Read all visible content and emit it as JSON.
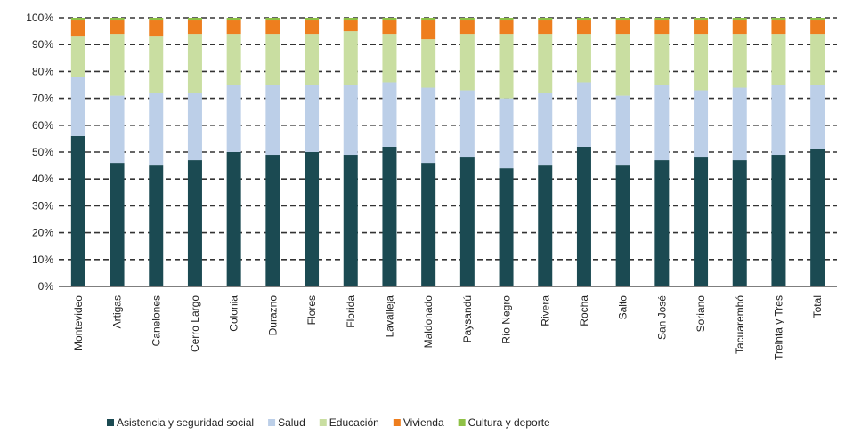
{
  "chart_data": {
    "type": "bar",
    "stacked": "percent",
    "title": "",
    "xlabel": "",
    "ylabel": "",
    "ylim": [
      0,
      100
    ],
    "yticks": [
      "0%",
      "10%",
      "20%",
      "30%",
      "40%",
      "50%",
      "60%",
      "70%",
      "80%",
      "90%",
      "100%"
    ],
    "grid": "horizontal dashed",
    "legend_position": "bottom",
    "categories": [
      "Montevideo",
      "Artigas",
      "Canelones",
      "Cerro Largo",
      "Colonia",
      "Durazno",
      "Flores",
      "Florida",
      "Lavalleja",
      "Maldonado",
      "Paysandú",
      "Río Negro",
      "Rivera",
      "Rocha",
      "Salto",
      "San José",
      "Soriano",
      "Tacuarembó",
      "Treinta y Tres",
      "Total"
    ],
    "series": [
      {
        "name": "Asistencia y seguridad social",
        "color": "#1b4a52",
        "values": [
          56,
          46,
          45,
          47,
          50,
          49,
          50,
          49,
          52,
          46,
          48,
          44,
          45,
          52,
          45,
          47,
          48,
          47,
          49,
          51
        ]
      },
      {
        "name": "Salud",
        "color": "#bccfe8",
        "values": [
          22,
          25,
          27,
          25,
          25,
          26,
          25,
          26,
          24,
          28,
          25,
          26,
          27,
          24,
          26,
          28,
          25,
          27,
          26,
          24
        ]
      },
      {
        "name": "Educación",
        "color": "#c9dea1",
        "values": [
          15,
          23,
          21,
          22,
          19,
          19,
          19,
          20,
          18,
          18,
          21,
          24,
          22,
          18,
          23,
          19,
          21,
          20,
          19,
          19
        ]
      },
      {
        "name": "Vivienda",
        "color": "#ee7e1e",
        "values": [
          6,
          5,
          6,
          5,
          5,
          5,
          5,
          4,
          5,
          7,
          5,
          5,
          5,
          5,
          5,
          5,
          5,
          5,
          5,
          5
        ]
      },
      {
        "name": "Cultura y deporte",
        "color": "#8fc146",
        "values": [
          1,
          1,
          1,
          1,
          1,
          1,
          1,
          1,
          1,
          1,
          1,
          1,
          1,
          1,
          1,
          1,
          1,
          1,
          1,
          1
        ]
      }
    ]
  }
}
